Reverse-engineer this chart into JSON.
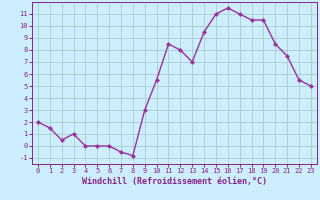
{
  "x": [
    0,
    1,
    2,
    3,
    4,
    5,
    6,
    7,
    8,
    9,
    10,
    11,
    12,
    13,
    14,
    15,
    16,
    17,
    18,
    19,
    20,
    21,
    22,
    23
  ],
  "y": [
    2,
    1.5,
    0.5,
    1,
    0,
    0,
    0,
    -0.5,
    -0.8,
    3,
    5.5,
    8.5,
    8,
    7,
    9.5,
    11,
    11.5,
    11,
    10.5,
    10.5,
    8.5,
    7.5,
    5.5,
    5
  ],
  "line_color": "#993399",
  "marker": "D",
  "marker_size": 2,
  "bg_color": "#cceeff",
  "grid_color": "#aacccc",
  "xlabel": "Windchill (Refroidissement éolien,°C)",
  "xlim": [
    -0.5,
    23.5
  ],
  "ylim": [
    -1.5,
    12.0
  ],
  "yticks": [
    -1,
    0,
    1,
    2,
    3,
    4,
    5,
    6,
    7,
    8,
    9,
    10,
    11
  ],
  "xticks": [
    0,
    1,
    2,
    3,
    4,
    5,
    6,
    7,
    8,
    9,
    10,
    11,
    12,
    13,
    14,
    15,
    16,
    17,
    18,
    19,
    20,
    21,
    22,
    23
  ],
  "tick_label_color": "#882288",
  "tick_label_fontsize": 5.0,
  "xlabel_fontsize": 6.0,
  "spine_color": "#882288",
  "linewidth": 1.0
}
